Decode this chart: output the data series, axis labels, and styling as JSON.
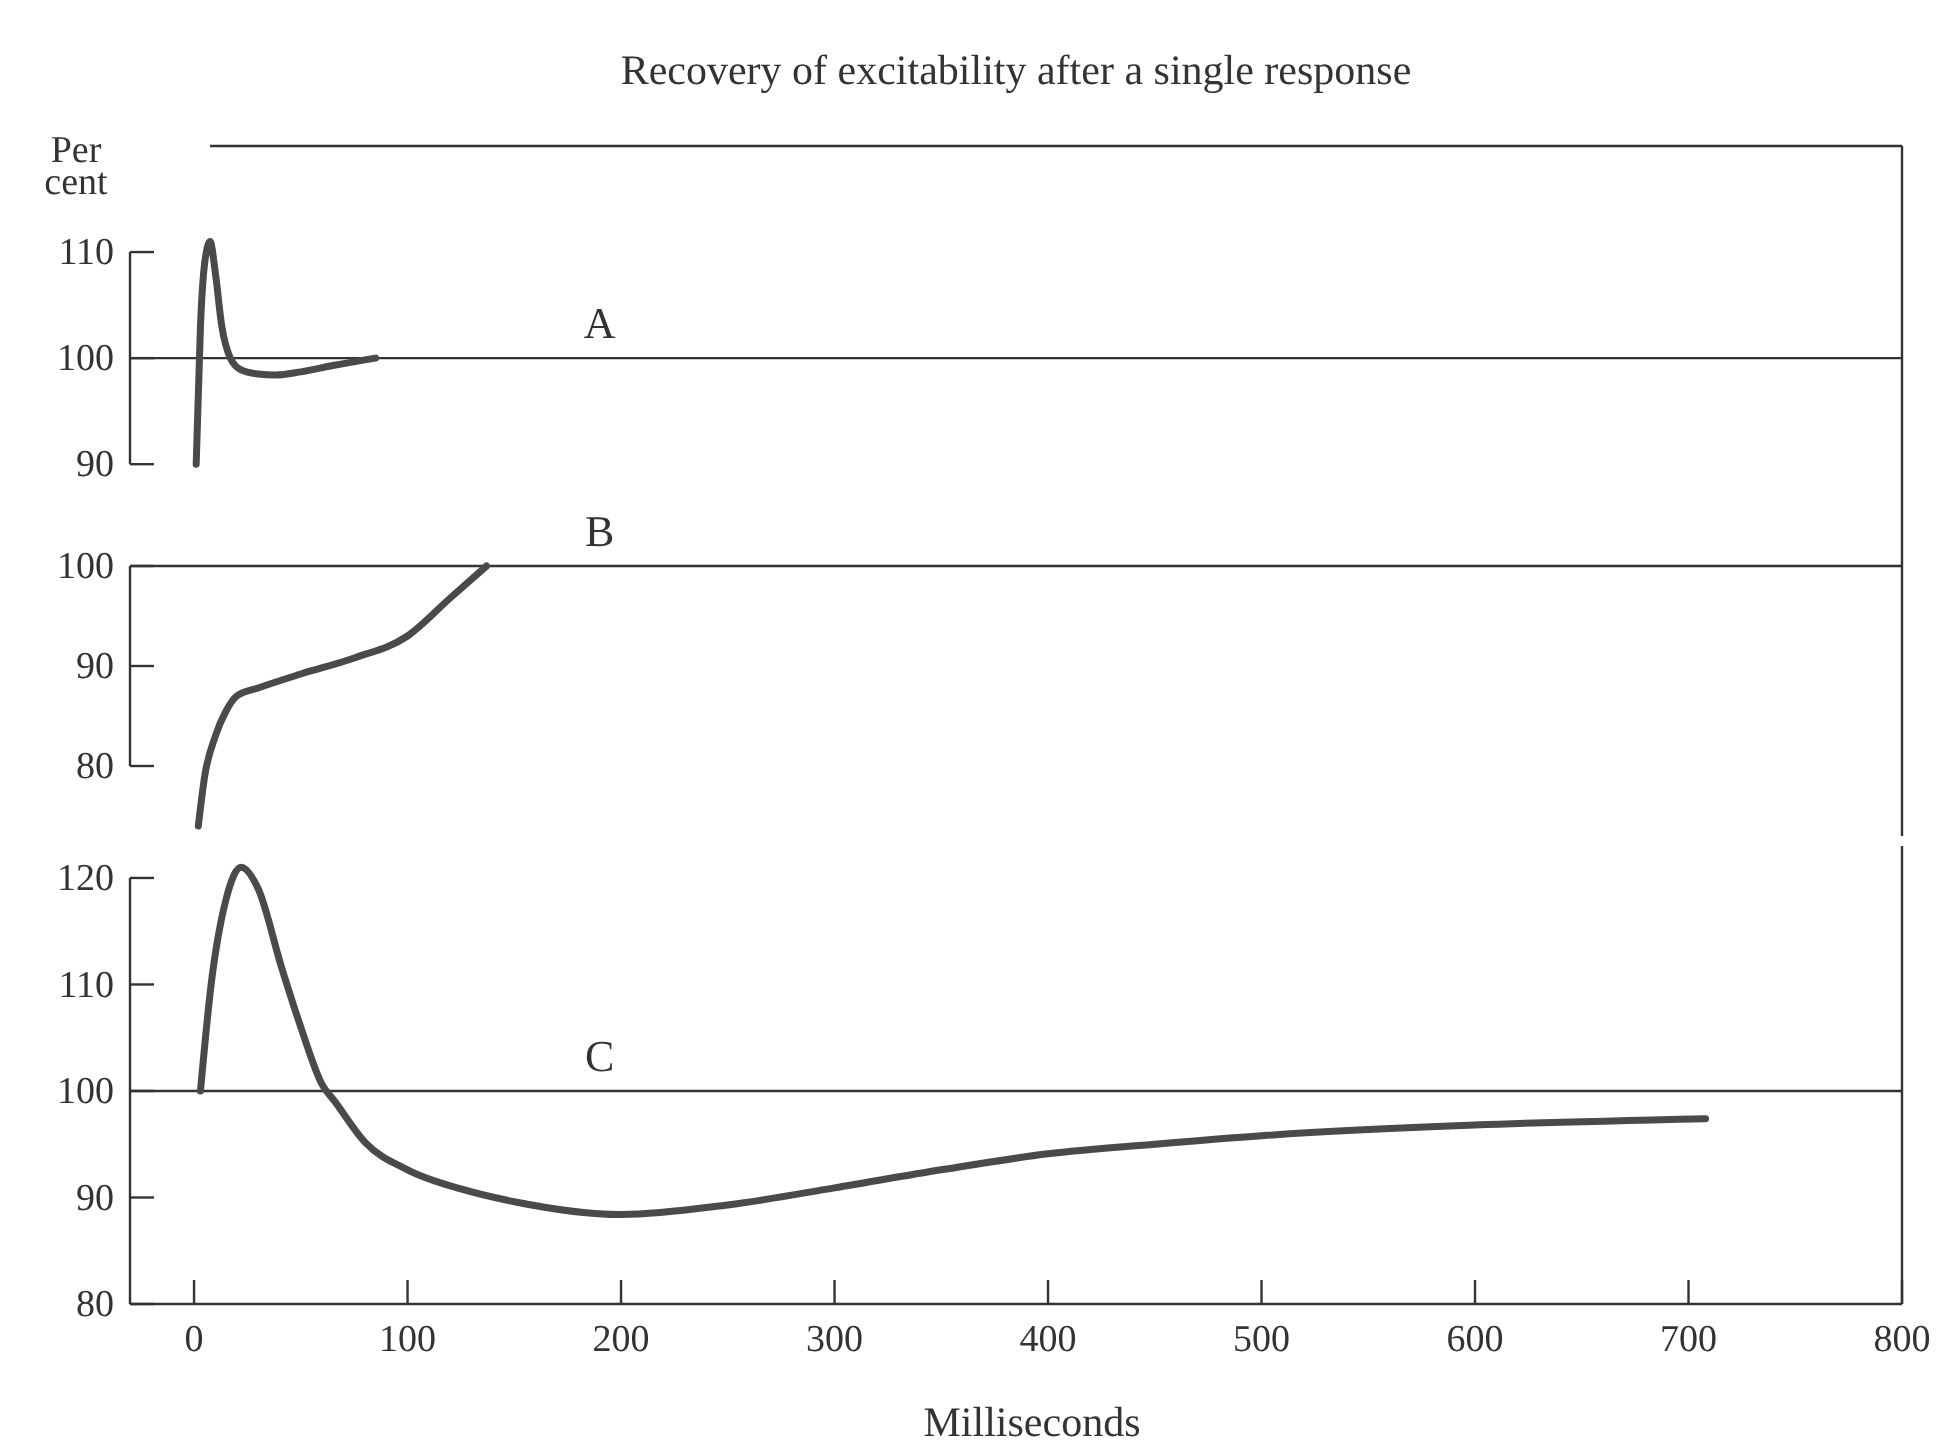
{
  "chart_data": [
    {
      "type": "line",
      "title": "Recovery of excitability after a single response",
      "ylabel": "Per cent",
      "xlim": [
        -30,
        800
      ],
      "ylim": [
        87,
        120
      ],
      "yticks": [
        90,
        100,
        110
      ],
      "tick_labels": "y",
      "grid": false,
      "ref_lines": [
        {
          "axis": "y",
          "value": 100,
          "label": "A"
        }
      ],
      "series": [
        {
          "color": "#4a4a4a",
          "x": [
            1,
            3,
            5,
            7.5,
            10,
            13,
            17,
            22,
            30,
            38,
            50,
            65,
            85
          ],
          "values": [
            90,
            103,
            109,
            111,
            108,
            103,
            100,
            98.9,
            98.5,
            98.4,
            98.7,
            99.3,
            100
          ]
        }
      ]
    },
    {
      "type": "line",
      "xlim": [
        -30,
        800
      ],
      "ylim": [
        73,
        107
      ],
      "yticks": [
        80,
        90,
        100
      ],
      "tick_labels": "y",
      "grid": false,
      "ref_lines": [
        {
          "axis": "y",
          "value": 100,
          "label": "B"
        }
      ],
      "series": [
        {
          "color": "#4a4a4a",
          "x": [
            2,
            5,
            10,
            15,
            20,
            30,
            50,
            75,
            100,
            120,
            137
          ],
          "values": [
            74,
            79,
            83,
            85.5,
            87,
            87.8,
            89.2,
            90.8,
            93,
            96.8,
            100
          ]
        }
      ]
    },
    {
      "type": "line",
      "xlabel": "Milliseconds",
      "xlim": [
        -30,
        800
      ],
      "xticks": [
        0,
        100,
        200,
        300,
        400,
        500,
        600,
        700,
        800
      ],
      "ylim": [
        80,
        123
      ],
      "yticks": [
        80,
        90,
        100,
        110,
        120
      ],
      "grid": false,
      "ref_lines": [
        {
          "axis": "y",
          "value": 100,
          "label": "C"
        }
      ],
      "series": [
        {
          "color": "#4a4a4a",
          "x": [
            3,
            8,
            15,
            22,
            30,
            41,
            50,
            60,
            66,
            80,
            100,
            125,
            150,
            200,
            250,
            300,
            350,
            400,
            450,
            500,
            600,
            708
          ],
          "values": [
            100,
            110,
            118,
            121,
            119,
            111.6,
            106,
            100.6,
            99,
            95.2,
            92.6,
            90.8,
            89.6,
            88.4,
            89.3,
            90.9,
            92.6,
            94.1,
            95,
            95.8,
            96.8,
            97.4
          ]
        }
      ]
    }
  ]
}
